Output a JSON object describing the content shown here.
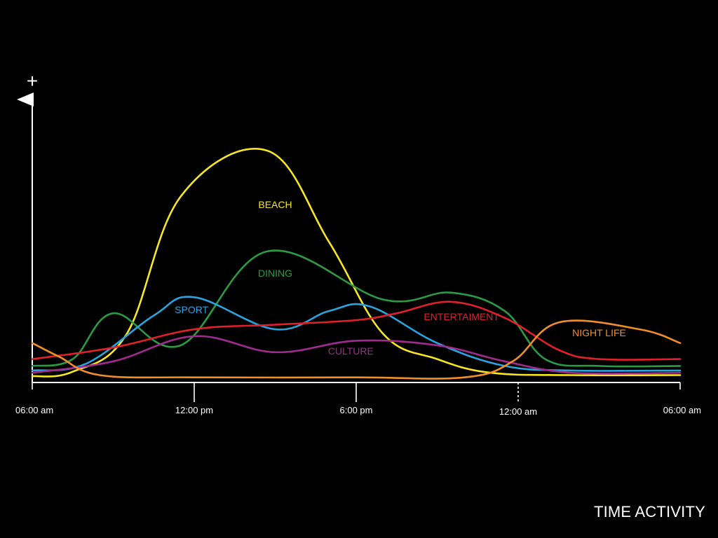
{
  "chart_data": {
    "type": "line",
    "title": "TIME ACTIVITY",
    "xlabel": "",
    "ylabel": "+",
    "x_unit": "hours since 06:00 am",
    "xlim": [
      0,
      24
    ],
    "ylim": [
      0,
      100
    ],
    "grid": false,
    "x_ticks": [
      {
        "x": 0,
        "label": "06:00 am"
      },
      {
        "x": 6,
        "label": "12:00 pm"
      },
      {
        "x": 12,
        "label": "6:00 pm"
      },
      {
        "x": 18,
        "label": "12:00 am",
        "dashed": true
      },
      {
        "x": 24,
        "label": "06:00 am"
      }
    ],
    "series": [
      {
        "name": "BEACH",
        "color": "#f7e625",
        "x": [
          0,
          1.5,
          3.5,
          5.5,
          8.7,
          11,
          13,
          15,
          17,
          20,
          24
        ],
        "y": [
          1.5,
          3.5,
          20,
          80,
          100,
          60,
          20,
          9,
          3,
          2,
          2
        ],
        "label_at": [
          9,
          75
        ]
      },
      {
        "name": "DINING",
        "color": "#2c9a45",
        "x": [
          0,
          1.5,
          3,
          5.5,
          8.7,
          13,
          15.5,
          17.5,
          19,
          21,
          24
        ],
        "y": [
          6,
          9,
          29,
          15,
          56,
          35,
          38,
          30,
          9,
          6,
          6
        ],
        "label_at": [
          9,
          45
        ]
      },
      {
        "name": "SPORT",
        "color": "#2aa3de",
        "x": [
          0,
          2,
          4.5,
          6,
          9,
          11,
          12.5,
          15,
          17.5,
          20,
          24
        ],
        "y": [
          4,
          7,
          28,
          36,
          22,
          30,
          32,
          16,
          6,
          4,
          4
        ],
        "label_at": [
          5.9,
          29
        ]
      },
      {
        "name": "ENTERTAIMENT",
        "color": "#e0202a",
        "x": [
          0,
          3,
          6,
          9,
          12,
          13.5,
          15.5,
          17.5,
          19.5,
          21,
          24
        ],
        "y": [
          9,
          14,
          22,
          24,
          26,
          29,
          34,
          27,
          13,
          9,
          9
        ],
        "label_at": [
          15.9,
          26
        ]
      },
      {
        "name": "CULTURE",
        "color": "#a12a8e",
        "x": [
          0,
          3,
          6,
          9,
          12,
          15,
          17.5,
          20,
          24
        ],
        "y": [
          3,
          8,
          19,
          12,
          17,
          15,
          8,
          3,
          3
        ],
        "label_at": [
          11.8,
          11
        ]
      },
      {
        "name": "NIGHT LIFE",
        "color": "#f08f2a",
        "x": [
          0,
          1,
          2.5,
          6,
          12,
          16,
          17.8,
          19.5,
          22.5,
          24
        ],
        "y": [
          16,
          10,
          2,
          1,
          1,
          1,
          8,
          25,
          22,
          16
        ],
        "label_at": [
          21,
          19
        ]
      }
    ]
  }
}
